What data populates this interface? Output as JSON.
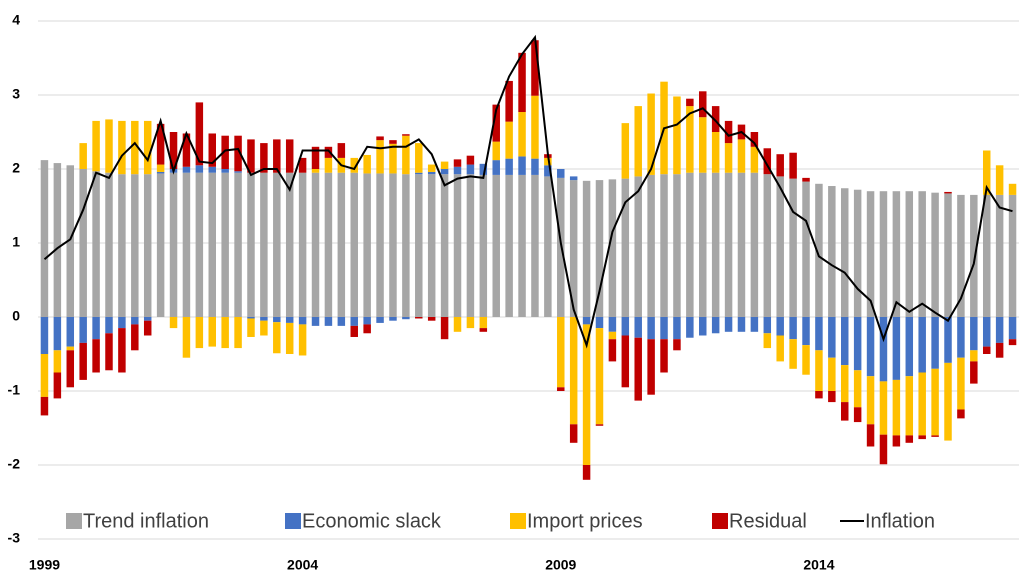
{
  "chart_data": {
    "type": "stacked-bar-line",
    "categories": [
      "1999",
      null,
      null,
      null,
      null,
      null,
      null,
      null,
      null,
      null,
      null,
      null,
      null,
      null,
      null,
      null,
      null,
      null,
      null,
      null,
      "2004",
      null,
      null,
      null,
      null,
      null,
      null,
      null,
      null,
      null,
      null,
      null,
      null,
      null,
      null,
      null,
      null,
      null,
      null,
      null,
      "2009",
      null,
      null,
      null,
      null,
      null,
      null,
      null,
      null,
      null,
      null,
      null,
      null,
      null,
      null,
      null,
      null,
      null,
      null,
      null,
      "2014",
      null,
      null,
      null,
      null,
      null,
      null,
      null,
      null,
      null,
      null,
      null,
      null,
      null,
      null,
      null
    ],
    "ylim": [
      -3,
      4
    ],
    "yticks": [
      -3,
      -2,
      -1,
      0,
      1,
      2,
      3,
      4
    ],
    "grid": true,
    "series": [
      {
        "name": "Trend inflation",
        "color": "#a6a6a6",
        "values": [
          2.12,
          2.08,
          2.05,
          2.0,
          1.97,
          1.95,
          1.93,
          1.93,
          1.93,
          1.94,
          1.95,
          1.95,
          1.95,
          1.95,
          1.95,
          1.95,
          1.95,
          1.95,
          1.95,
          1.95,
          1.95,
          1.95,
          1.95,
          1.95,
          1.95,
          1.94,
          1.94,
          1.94,
          1.93,
          1.93,
          1.93,
          1.93,
          1.93,
          1.93,
          1.92,
          1.92,
          1.92,
          1.92,
          1.92,
          1.9,
          1.88,
          1.85,
          1.84,
          1.85,
          1.86,
          1.87,
          1.9,
          1.92,
          1.93,
          1.93,
          1.95,
          1.95,
          1.95,
          1.95,
          1.95,
          1.95,
          1.93,
          1.9,
          1.87,
          1.83,
          1.8,
          1.77,
          1.74,
          1.72,
          1.7,
          1.7,
          1.7,
          1.7,
          1.7,
          1.68,
          1.67,
          1.65,
          1.65,
          1.65,
          1.65,
          1.65
        ]
      },
      {
        "name": "Economic slack",
        "color": "#4472c4",
        "values": [
          -0.5,
          -0.45,
          -0.4,
          -0.35,
          -0.3,
          -0.22,
          -0.15,
          -0.1,
          -0.05,
          0.02,
          0.05,
          0.08,
          0.1,
          0.08,
          0.05,
          0.02,
          -0.02,
          -0.05,
          -0.07,
          -0.08,
          -0.1,
          -0.12,
          -0.12,
          -0.12,
          -0.12,
          -0.1,
          -0.08,
          -0.05,
          -0.03,
          0.02,
          0.03,
          0.07,
          0.1,
          0.13,
          0.15,
          0.2,
          0.22,
          0.25,
          0.22,
          0.15,
          0.12,
          0.05,
          -0.1,
          -0.15,
          -0.2,
          -0.25,
          -0.28,
          -0.3,
          -0.3,
          -0.3,
          -0.28,
          -0.25,
          -0.22,
          -0.2,
          -0.2,
          -0.2,
          -0.22,
          -0.25,
          -0.3,
          -0.38,
          -0.45,
          -0.55,
          -0.65,
          -0.72,
          -0.8,
          -0.87,
          -0.85,
          -0.8,
          -0.75,
          -0.7,
          -0.62,
          -0.55,
          -0.45,
          -0.4,
          -0.35,
          -0.3
        ]
      },
      {
        "name": "Import prices",
        "color": "#ffc000",
        "values": [
          -0.58,
          -0.3,
          -0.05,
          0.35,
          0.68,
          0.72,
          0.72,
          0.72,
          0.72,
          0.1,
          -0.15,
          -0.55,
          -0.42,
          -0.4,
          -0.42,
          -0.42,
          -0.25,
          -0.2,
          -0.42,
          -0.42,
          -0.42,
          0.05,
          0.2,
          0.2,
          0.2,
          0.25,
          0.45,
          0.4,
          0.52,
          0.4,
          0.1,
          0.1,
          -0.2,
          -0.15,
          -0.15,
          0.25,
          0.5,
          0.6,
          0.85,
          0.1,
          -0.95,
          -1.45,
          -1.9,
          -1.3,
          -0.1,
          0.75,
          0.95,
          1.1,
          1.25,
          1.05,
          0.9,
          0.75,
          0.55,
          0.4,
          0.45,
          0.35,
          -0.2,
          -0.35,
          -0.4,
          -0.4,
          -0.55,
          -0.45,
          -0.5,
          -0.5,
          -0.65,
          -0.72,
          -0.75,
          -0.8,
          -0.85,
          -0.9,
          -1.05,
          -0.7,
          -0.15,
          0.6,
          0.4,
          0.15
        ]
      },
      {
        "name": "Residual",
        "color": "#c00000",
        "values": [
          -0.25,
          -0.35,
          -0.5,
          -0.5,
          -0.45,
          -0.5,
          -0.6,
          -0.35,
          -0.2,
          0.55,
          0.5,
          0.45,
          0.85,
          0.45,
          0.45,
          0.48,
          0.45,
          0.4,
          0.45,
          0.45,
          0.2,
          0.3,
          0.15,
          0.2,
          -0.15,
          -0.12,
          0.05,
          0.05,
          0.02,
          -0.02,
          -0.05,
          -0.3,
          0.1,
          0.12,
          -0.05,
          0.5,
          0.55,
          0.8,
          0.75,
          0.05,
          -0.05,
          -0.25,
          -0.2,
          -0.02,
          -0.3,
          -0.7,
          -0.85,
          -0.75,
          -0.45,
          -0.15,
          0.1,
          0.35,
          0.35,
          0.3,
          0.2,
          0.2,
          0.35,
          0.3,
          0.35,
          0.05,
          -0.1,
          -0.15,
          -0.25,
          -0.2,
          -0.3,
          -0.4,
          -0.15,
          -0.1,
          -0.05,
          -0.02,
          0.02,
          -0.12,
          -0.3,
          -0.1,
          -0.2,
          -0.08
        ]
      },
      {
        "name": "Inflation",
        "color": "#000000",
        "kind": "line",
        "values": [
          0.78,
          0.93,
          1.05,
          1.45,
          1.95,
          1.88,
          2.18,
          2.35,
          2.12,
          2.65,
          1.97,
          2.48,
          2.1,
          2.08,
          2.25,
          2.27,
          1.92,
          2.0,
          2.0,
          1.72,
          2.25,
          2.25,
          2.25,
          2.05,
          2.0,
          2.3,
          2.28,
          2.3,
          2.3,
          2.4,
          2.2,
          1.78,
          1.87,
          1.9,
          1.88,
          2.8,
          3.25,
          3.55,
          3.78,
          2.2,
          1.0,
          0.1,
          -0.38,
          0.35,
          1.15,
          1.55,
          1.7,
          2.0,
          2.55,
          2.6,
          2.75,
          2.82,
          2.65,
          2.45,
          2.5,
          2.35,
          2.05,
          1.75,
          1.42,
          1.3,
          0.82,
          0.7,
          0.6,
          0.38,
          0.22,
          -0.3,
          0.2,
          0.07,
          0.18,
          0.06,
          -0.05,
          0.25,
          0.72,
          1.75,
          1.48,
          1.43
        ]
      }
    ]
  }
}
